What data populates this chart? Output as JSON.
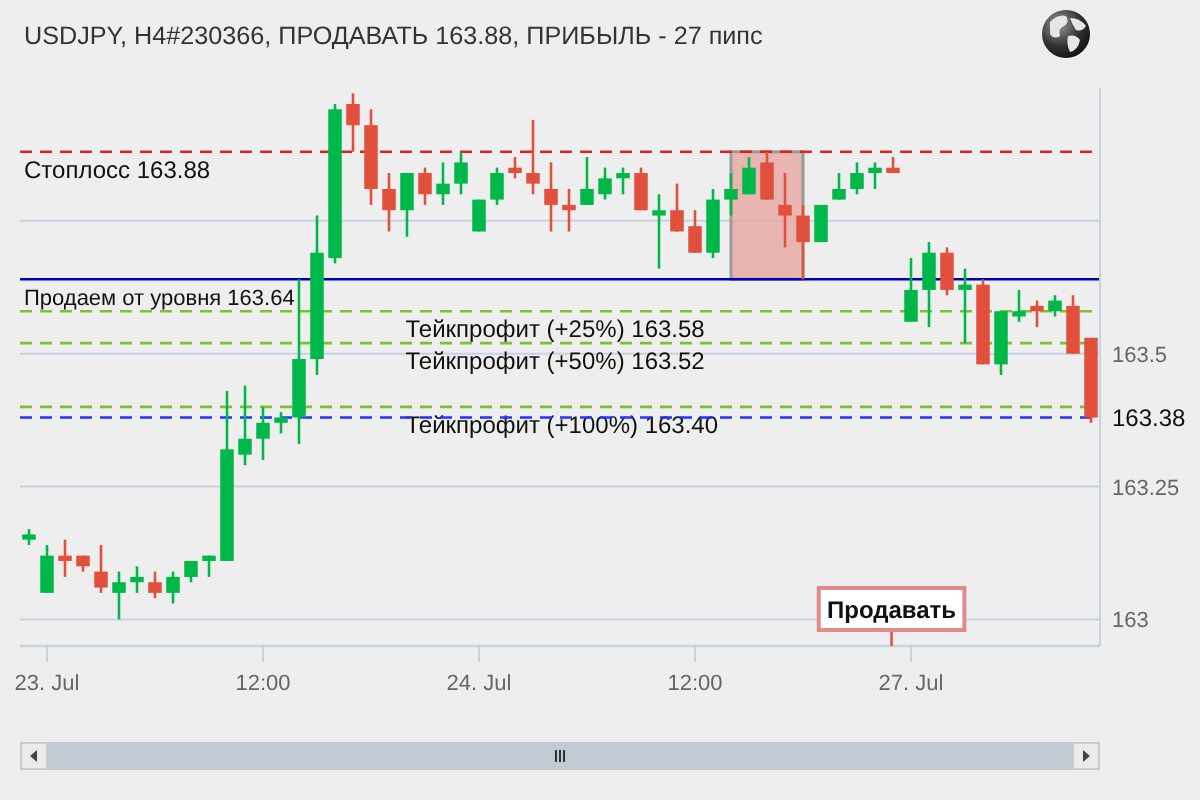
{
  "chart_data": {
    "type": "candlestick",
    "title": "USDJPY, H4#230366, ПРОДАВАТЬ 163.88, ПРИБЫЛЬ - 27 пипс",
    "categories": [
      null,
      "23. Jul",
      null,
      null,
      null,
      null,
      null,
      null,
      null,
      null,
      null,
      null,
      null,
      "12:00",
      null,
      null,
      null,
      null,
      null,
      null,
      null,
      null,
      null,
      null,
      null,
      "24. Jul",
      null,
      null,
      null,
      null,
      null,
      null,
      null,
      null,
      null,
      null,
      null,
      "12:00",
      null,
      null,
      null,
      null,
      null,
      null,
      null,
      null,
      null,
      null,
      null,
      "27. Jul",
      null,
      null,
      null,
      null,
      null,
      null,
      null,
      null,
      null,
      null
    ],
    "ohlc": [
      [
        163.15,
        163.17,
        163.14,
        163.16
      ],
      [
        163.05,
        163.14,
        163.05,
        163.12
      ],
      [
        163.12,
        163.15,
        163.08,
        163.11
      ],
      [
        163.12,
        163.12,
        163.09,
        163.1
      ],
      [
        163.09,
        163.14,
        163.05,
        163.06
      ],
      [
        163.05,
        163.09,
        163.0,
        163.07
      ],
      [
        163.07,
        163.1,
        163.05,
        163.08
      ],
      [
        163.07,
        163.09,
        163.04,
        163.05
      ],
      [
        163.05,
        163.09,
        163.03,
        163.08
      ],
      [
        163.08,
        163.11,
        163.07,
        163.11
      ],
      [
        163.11,
        163.12,
        163.08,
        163.12
      ],
      [
        163.11,
        163.43,
        163.11,
        163.32
      ],
      [
        163.31,
        163.44,
        163.29,
        163.34
      ],
      [
        163.34,
        163.4,
        163.3,
        163.37
      ],
      [
        163.37,
        163.39,
        163.35,
        163.38
      ],
      [
        163.38,
        163.64,
        163.33,
        163.49
      ],
      [
        163.49,
        163.76,
        163.46,
        163.69
      ],
      [
        163.68,
        163.97,
        163.67,
        163.96
      ],
      [
        163.97,
        163.99,
        163.88,
        163.93
      ],
      [
        163.93,
        163.96,
        163.78,
        163.81
      ],
      [
        163.81,
        163.84,
        163.73,
        163.77
      ],
      [
        163.77,
        163.84,
        163.72,
        163.84
      ],
      [
        163.84,
        163.85,
        163.78,
        163.8
      ],
      [
        163.8,
        163.86,
        163.78,
        163.82
      ],
      [
        163.82,
        163.88,
        163.8,
        163.86
      ],
      [
        163.73,
        163.79,
        163.73,
        163.79
      ],
      [
        163.79,
        163.85,
        163.78,
        163.84
      ],
      [
        163.85,
        163.87,
        163.83,
        163.84
      ],
      [
        163.84,
        163.94,
        163.8,
        163.82
      ],
      [
        163.81,
        163.86,
        163.73,
        163.78
      ],
      [
        163.78,
        163.81,
        163.73,
        163.77
      ],
      [
        163.78,
        163.87,
        163.78,
        163.81
      ],
      [
        163.8,
        163.85,
        163.79,
        163.83
      ],
      [
        163.83,
        163.85,
        163.8,
        163.84
      ],
      [
        163.84,
        163.85,
        163.77,
        163.77
      ],
      [
        163.76,
        163.8,
        163.66,
        163.77
      ],
      [
        163.77,
        163.82,
        163.73,
        163.73
      ],
      [
        163.74,
        163.77,
        163.69,
        163.69
      ],
      [
        163.69,
        163.81,
        163.68,
        163.79
      ],
      [
        163.79,
        163.84,
        163.76,
        163.81
      ],
      [
        163.8,
        163.87,
        163.8,
        163.85
      ],
      [
        163.86,
        163.88,
        163.79,
        163.79
      ],
      [
        163.78,
        163.84,
        163.7,
        163.76
      ],
      [
        163.76,
        163.78,
        163.64,
        163.71
      ],
      [
        163.71,
        163.78,
        163.71,
        163.78
      ],
      [
        163.79,
        163.84,
        163.79,
        163.81
      ],
      [
        163.81,
        163.86,
        163.8,
        163.84
      ],
      [
        163.84,
        163.86,
        163.81,
        163.85
      ],
      [
        163.85,
        163.87,
        163.84,
        163.84
      ],
      [
        163.56,
        163.68,
        163.56,
        163.62
      ],
      [
        163.62,
        163.71,
        163.55,
        163.69
      ],
      [
        163.69,
        163.7,
        163.61,
        163.62
      ],
      [
        163.62,
        163.66,
        163.52,
        163.63
      ],
      [
        163.63,
        163.64,
        163.48,
        163.48
      ],
      [
        163.48,
        163.58,
        163.46,
        163.58
      ],
      [
        163.57,
        163.62,
        163.56,
        163.58
      ],
      [
        163.59,
        163.6,
        163.55,
        163.58
      ],
      [
        163.58,
        163.61,
        163.57,
        163.6
      ],
      [
        163.59,
        163.61,
        163.5,
        163.5
      ],
      [
        163.53,
        163.53,
        163.37,
        163.38
      ]
    ],
    "colors": [
      "#00b84a",
      "#00b84a",
      "#e0503c",
      "#e0503c",
      "#e0503c",
      "#00b84a",
      "#00b84a",
      "#e0503c",
      "#00b84a",
      "#00b84a",
      "#00b84a",
      "#00b84a",
      "#00b84a",
      "#00b84a",
      "#00b84a",
      "#00b84a",
      "#00b84a",
      "#00b84a",
      "#e0503c",
      "#e0503c",
      "#e0503c",
      "#00b84a",
      "#e0503c",
      "#00b84a",
      "#00b84a",
      "#00b84a",
      "#00b84a",
      "#e0503c",
      "#e0503c",
      "#e0503c",
      "#e0503c",
      "#00b84a",
      "#00b84a",
      "#00b84a",
      "#e0503c",
      "#00b84a",
      "#e0503c",
      "#e0503c",
      "#00b84a",
      "#00b84a",
      "#00b84a",
      "#e0503c",
      "#e0503c",
      "#e0503c",
      "#00b84a",
      "#00b84a",
      "#00b84a",
      "#00b84a",
      "#e0503c",
      "#00b84a",
      "#00b84a",
      "#e0503c",
      "#00b84a",
      "#e0503c",
      "#00b84a",
      "#00b84a",
      "#e0503c",
      "#00b84a",
      "#e0503c",
      "#e0503c"
    ],
    "ylim": [
      162.95,
      164.0
    ],
    "yticks": [
      163,
      163.25,
      163.5,
      {
        "value": 163.75,
        "label": null
      }
    ],
    "grid": "y",
    "ref_lines": [
      {
        "axis": "y",
        "value": 163.88,
        "label": "Стоплосс 163.88",
        "color": "#dd2222",
        "line_style": "dashed"
      },
      {
        "axis": "y",
        "value": 163.64,
        "label": "Продаем от уровня 163.64",
        "color": "#0000bb",
        "line_style": "solid"
      },
      {
        "axis": "y",
        "value": 163.58,
        "label": "Тейкпрофит (+25%) 163.58",
        "color": "#7dc12e",
        "line_style": "dashed"
      },
      {
        "axis": "y",
        "value": 163.52,
        "label": "Тейкпрофит (+50%) 163.52",
        "color": "#7dc12e",
        "line_style": "dashed"
      },
      {
        "axis": "y",
        "value": 163.4,
        "label": "Тейкпрофит (+100%) 163.40",
        "color": "#7dc12e",
        "line_style": "dashed"
      },
      {
        "axis": "y",
        "value": 163.38,
        "label": "163.38",
        "color": "#2233ff",
        "line_style": "dashed"
      }
    ],
    "annotations": [
      "Продавать"
    ]
  }
}
